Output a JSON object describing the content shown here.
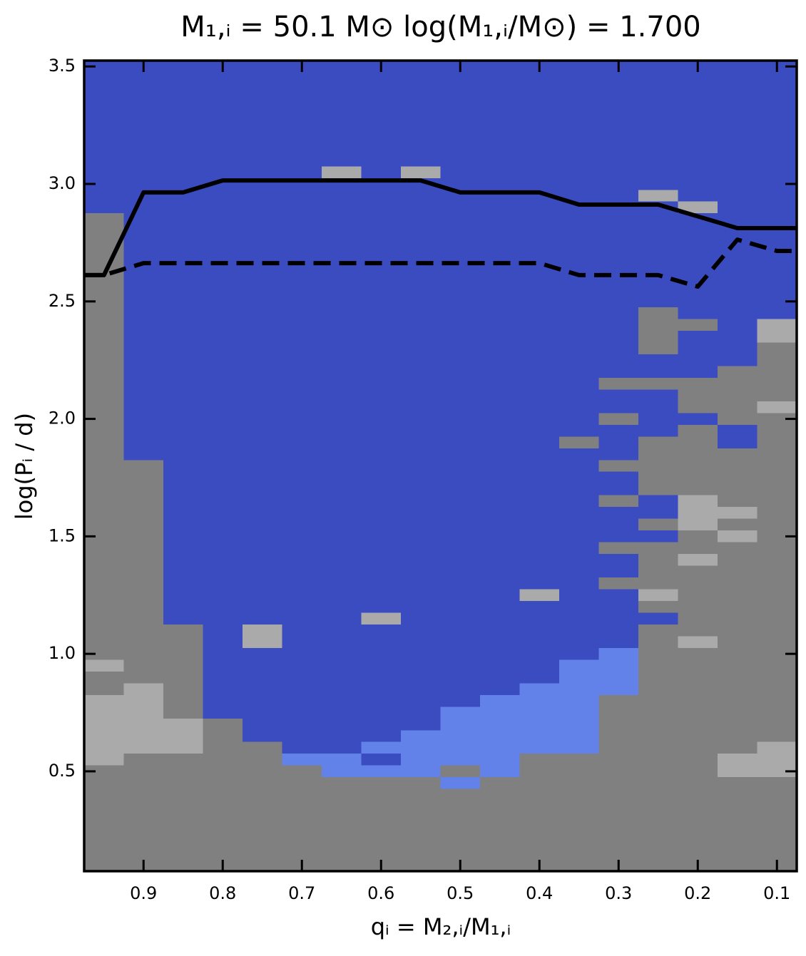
{
  "chart_data": {
    "type": "heatmap",
    "title": "M₁,ᵢ = 50.1 M⊙    log(M₁,ᵢ/M⊙) = 1.700",
    "x_label": "qᵢ = M₂,ᵢ/M₁,ᵢ",
    "y_label": "log(Pᵢ / d)",
    "xlim": [
      0.975,
      0.075
    ],
    "ylim": [
      0.075,
      3.525
    ],
    "xticks": [
      0.9,
      0.8,
      0.7,
      0.6,
      0.5,
      0.4,
      0.3,
      0.2,
      0.1
    ],
    "yticks": [
      0.5,
      {
        "value": 1,
        "label": "1.0"
      },
      1.5,
      {
        "value": 2,
        "label": "2.0"
      },
      2.5,
      {
        "value": 3,
        "label": "3.0"
      },
      3.5
    ],
    "colors": [
      "#808080",
      "#3a4cc0",
      "#6282ea",
      "#aaaaaa"
    ],
    "cells": [
      [
        0.975,
        0.075,
        0.075,
        3.525,
        1
      ],
      [
        0.975,
        0.925,
        0.075,
        2.875,
        0
      ],
      [
        0.975,
        0.925,
        0.525,
        0.825,
        3
      ],
      [
        0.975,
        0.925,
        0.925,
        0.975,
        3
      ],
      [
        0.925,
        0.875,
        0.075,
        1.825,
        0
      ],
      [
        0.925,
        0.875,
        0.575,
        0.875,
        3
      ],
      [
        0.875,
        0.825,
        0.075,
        1.125,
        0
      ],
      [
        0.875,
        0.825,
        0.575,
        0.725,
        3
      ],
      [
        0.825,
        0.775,
        0.075,
        0.725,
        0
      ],
      [
        0.775,
        0.725,
        0.075,
        0.625,
        0
      ],
      [
        0.775,
        0.725,
        1.025,
        1.125,
        3
      ],
      [
        0.725,
        0.675,
        0.075,
        0.525,
        0
      ],
      [
        0.725,
        0.675,
        0.525,
        0.575,
        2
      ],
      [
        0.675,
        0.625,
        0.075,
        0.475,
        0
      ],
      [
        0.675,
        0.625,
        0.475,
        0.575,
        2
      ],
      [
        0.675,
        0.625,
        3.025,
        3.075,
        3
      ],
      [
        0.625,
        0.575,
        0.075,
        0.475,
        0
      ],
      [
        0.625,
        0.575,
        0.475,
        0.525,
        2
      ],
      [
        0.625,
        0.575,
        0.575,
        0.625,
        2
      ],
      [
        0.625,
        0.575,
        1.125,
        1.175,
        3
      ],
      [
        0.575,
        0.525,
        0.075,
        0.475,
        0
      ],
      [
        0.575,
        0.525,
        0.475,
        0.675,
        2
      ],
      [
        0.575,
        0.525,
        3.025,
        3.075,
        3
      ],
      [
        0.525,
        0.475,
        0.075,
        0.425,
        0
      ],
      [
        0.525,
        0.475,
        0.425,
        0.475,
        2
      ],
      [
        0.525,
        0.475,
        0.475,
        0.525,
        0
      ],
      [
        0.525,
        0.475,
        0.525,
        0.775,
        2
      ],
      [
        0.475,
        0.425,
        0.075,
        0.475,
        0
      ],
      [
        0.475,
        0.425,
        0.475,
        0.825,
        2
      ],
      [
        0.425,
        0.375,
        0.075,
        0.575,
        0
      ],
      [
        0.425,
        0.375,
        0.575,
        0.875,
        2
      ],
      [
        0.425,
        0.375,
        1.225,
        1.275,
        3
      ],
      [
        0.375,
        0.325,
        0.075,
        0.575,
        0
      ],
      [
        0.375,
        0.325,
        0.575,
        0.975,
        2
      ],
      [
        0.375,
        0.325,
        1.875,
        1.925,
        0
      ],
      [
        0.325,
        0.275,
        0.075,
        0.825,
        0
      ],
      [
        0.325,
        0.275,
        0.825,
        1.025,
        2
      ],
      [
        0.325,
        0.275,
        1.275,
        1.325,
        0
      ],
      [
        0.325,
        0.275,
        1.425,
        1.475,
        0
      ],
      [
        0.325,
        0.275,
        1.625,
        1.675,
        0
      ],
      [
        0.325,
        0.275,
        1.775,
        1.825,
        0
      ],
      [
        0.325,
        0.275,
        1.975,
        2.025,
        0
      ],
      [
        0.325,
        0.275,
        2.125,
        2.175,
        0
      ],
      [
        0.275,
        0.225,
        0.075,
        1.125,
        0
      ],
      [
        0.275,
        0.225,
        1.175,
        1.475,
        0
      ],
      [
        0.275,
        0.225,
        1.225,
        1.275,
        3
      ],
      [
        0.275,
        0.225,
        1.525,
        1.575,
        0
      ],
      [
        0.275,
        0.225,
        1.675,
        1.925,
        0
      ],
      [
        0.275,
        0.225,
        2.125,
        2.175,
        0
      ],
      [
        0.275,
        0.225,
        2.275,
        2.475,
        0
      ],
      [
        0.275,
        0.225,
        2.925,
        2.975,
        3
      ],
      [
        0.225,
        0.175,
        0.075,
        1.975,
        0
      ],
      [
        0.225,
        0.175,
        1.025,
        1.075,
        3
      ],
      [
        0.225,
        0.175,
        1.375,
        1.425,
        3
      ],
      [
        0.225,
        0.175,
        1.525,
        1.675,
        3
      ],
      [
        0.225,
        0.175,
        2.025,
        2.175,
        0
      ],
      [
        0.225,
        0.175,
        2.375,
        2.425,
        0
      ],
      [
        0.225,
        0.175,
        2.875,
        2.925,
        3
      ],
      [
        0.175,
        0.125,
        0.075,
        1.875,
        0
      ],
      [
        0.175,
        0.125,
        0.475,
        0.575,
        3
      ],
      [
        0.175,
        0.125,
        1.475,
        1.525,
        3
      ],
      [
        0.175,
        0.125,
        1.575,
        1.625,
        3
      ],
      [
        0.175,
        0.125,
        1.975,
        2.225,
        0
      ],
      [
        0.125,
        0.075,
        0.075,
        2.325,
        0
      ],
      [
        0.125,
        0.075,
        0.475,
        0.625,
        3
      ],
      [
        0.125,
        0.075,
        2.025,
        2.075,
        3
      ],
      [
        0.125,
        0.075,
        2.325,
        2.425,
        3
      ]
    ],
    "series": [
      {
        "color": "#000000",
        "style": "solid",
        "x": [
          0.975,
          0.95,
          0.9,
          0.85,
          0.8,
          0.55,
          0.5,
          0.4,
          0.35,
          0.25,
          0.15,
          0.075
        ],
        "values": [
          2.612,
          2.612,
          2.964,
          2.964,
          3.015,
          3.015,
          2.964,
          2.964,
          2.912,
          2.912,
          2.812,
          2.812
        ]
      },
      {
        "color": "#000000",
        "style": "dashed",
        "x": [
          0.975,
          0.95,
          0.9,
          0.4,
          0.35,
          0.25,
          0.2,
          0.15,
          0.1,
          0.075
        ],
        "values": [
          2.612,
          2.612,
          2.663,
          2.663,
          2.612,
          2.612,
          2.563,
          2.763,
          2.715,
          2.715
        ]
      }
    ]
  }
}
